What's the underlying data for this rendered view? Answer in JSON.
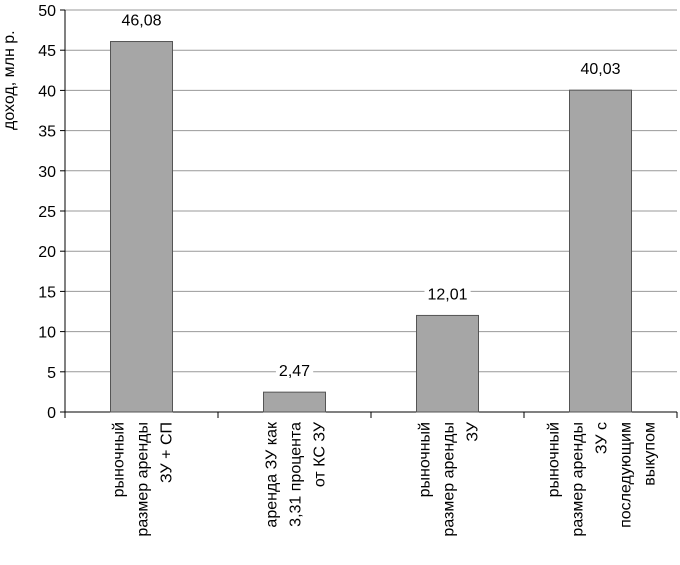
{
  "chart_data": {
    "type": "bar",
    "y_label": "доход, млн р.",
    "categories": [
      "рыночный\nразмер аренды\nЗУ + СП",
      "аренда  ЗУ как\n3,31 процента\nот КС ЗУ",
      "рыночный\nразмер аренды\nЗУ",
      "рыночный\nразмер аренды\nЗУ с\nпоследующим\nвыкупом"
    ],
    "values": [
      46.08,
      2.47,
      12.01,
      40.03
    ],
    "value_labels": [
      "46,08",
      "2,47",
      "12,01",
      "40,03"
    ],
    "color": "#a6a6a6",
    "ylim": [
      0,
      50
    ],
    "yticks": [
      0,
      5,
      10,
      15,
      20,
      25,
      30,
      35,
      40,
      45,
      50
    ],
    "grid": true
  }
}
